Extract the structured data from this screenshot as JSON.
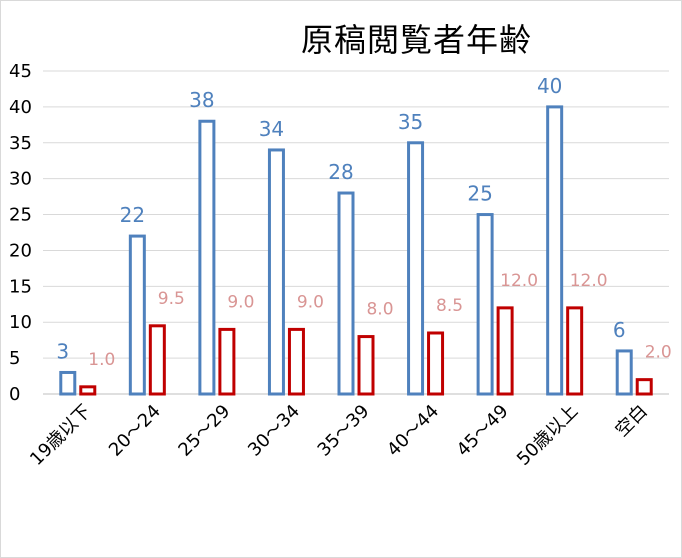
{
  "chart_data": {
    "type": "bar",
    "title": "原稿閲覧者年齢",
    "xlabel": "",
    "ylabel": "",
    "ylim": [
      0,
      45
    ],
    "yticks": [
      0,
      5,
      10,
      15,
      20,
      25,
      30,
      35,
      40,
      45
    ],
    "grid": true,
    "legend": "none",
    "categories": [
      "19歳以下",
      "20～24",
      "25～29",
      "30～34",
      "35～39",
      "40～44",
      "45～49",
      "50歳以上",
      "空白"
    ],
    "series": [
      {
        "values": [
          3,
          22,
          38,
          34,
          28,
          35,
          25,
          40,
          6
        ],
        "labels": [
          "3",
          "22",
          "38",
          "34",
          "28",
          "35",
          "25",
          "40",
          "6"
        ],
        "color": "#4f81bd",
        "label_color": "#4f81bd"
      },
      {
        "values": [
          1.0,
          9.5,
          9.0,
          9.0,
          8.0,
          8.5,
          12.0,
          12.0,
          2.0
        ],
        "labels": [
          "1.0",
          "9.5",
          "9.0",
          "9.0",
          "8.0",
          "8.5",
          "12.0",
          "12.0",
          "2.0"
        ],
        "color": "#c00000",
        "label_color": "#d99594"
      }
    ]
  }
}
